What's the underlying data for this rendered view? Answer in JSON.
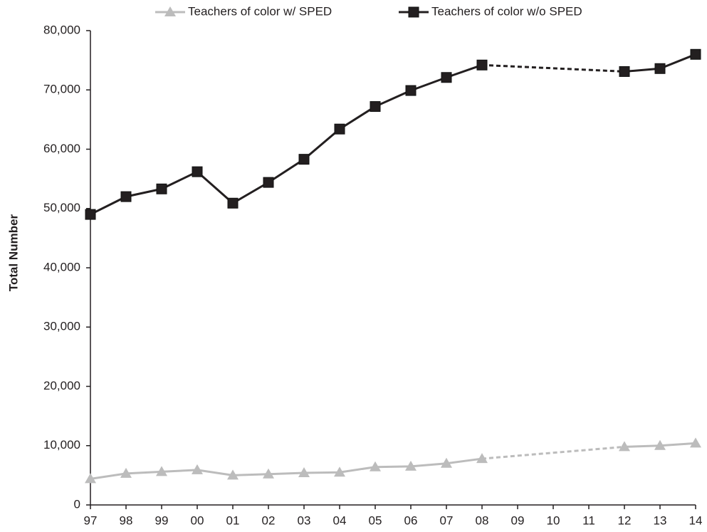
{
  "chart_data": {
    "type": "line",
    "y_label": "Total Number",
    "categories": [
      "97",
      "98",
      "99",
      "00",
      "01",
      "02",
      "03",
      "04",
      "05",
      "06",
      "07",
      "08",
      "09",
      "10",
      "11",
      "12",
      "13",
      "14"
    ],
    "series": [
      {
        "name": "Teachers of color w/ SPED",
        "color": "#bcbcbc",
        "marker": "triangle",
        "values": [
          4400,
          5300,
          5600,
          5900,
          5000,
          5200,
          5400,
          5500,
          6400,
          6500,
          7000,
          7800,
          null,
          null,
          null,
          9800,
          10000,
          10400
        ]
      },
      {
        "name": "Teachers of color w/o SPED",
        "color": "#231f20",
        "marker": "square",
        "values": [
          49000,
          52000,
          53300,
          56200,
          50900,
          54400,
          58300,
          63400,
          67200,
          69900,
          72100,
          74200,
          null,
          null,
          null,
          73100,
          73600,
          76000
        ]
      }
    ],
    "ylim": [
      0,
      80000
    ],
    "yticks": [
      0,
      {
        "value": 10000,
        "label": "10,000"
      },
      {
        "value": 20000,
        "label": "20,000"
      },
      {
        "value": 30000,
        "label": "30,000"
      },
      {
        "value": 40000,
        "label": "40,000"
      },
      {
        "value": 50000,
        "label": "50,000"
      },
      {
        "value": 60000,
        "label": "60,000"
      },
      {
        "value": 70000,
        "label": "70,000"
      },
      {
        "value": 80000,
        "label": "80,000"
      }
    ],
    "grid": false
  }
}
